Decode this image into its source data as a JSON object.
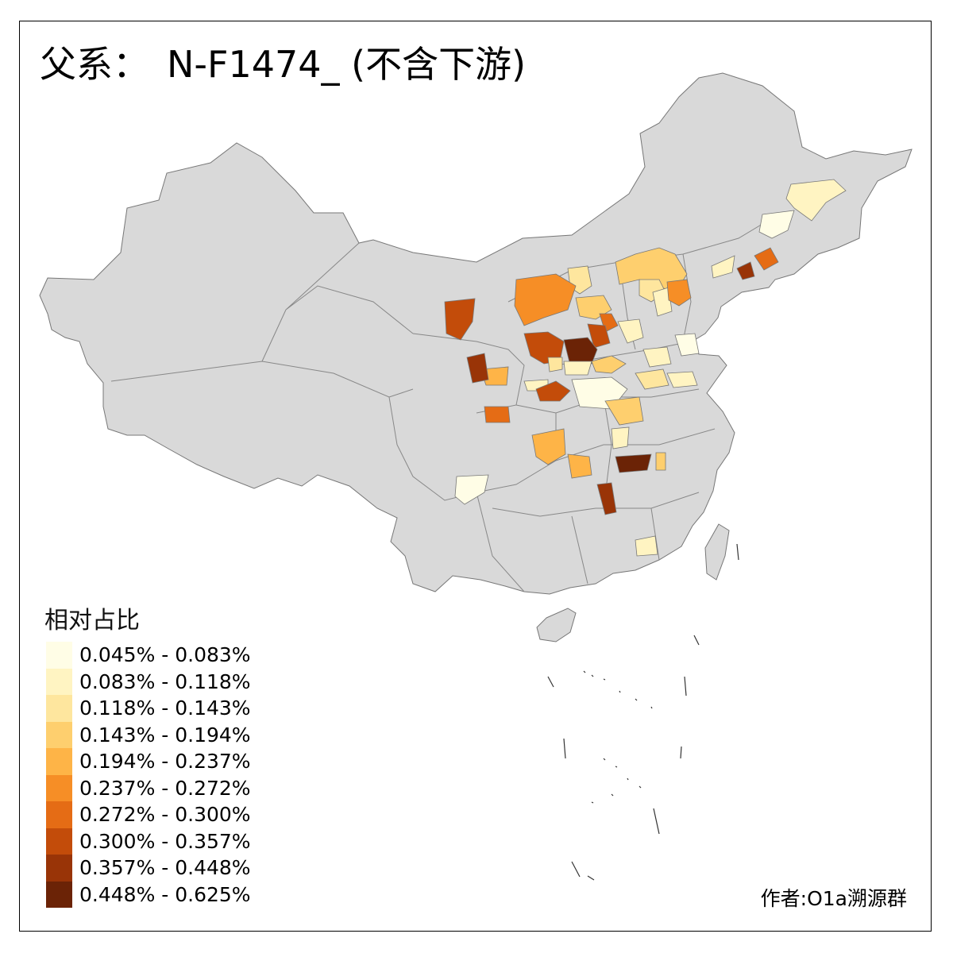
{
  "title": {
    "prefix": "父系：",
    "haplogroup": "N-F1474_ (不含下游)"
  },
  "legend": {
    "title": "相对占比",
    "bins": [
      {
        "label": "0.045% - 0.083%",
        "color": "#fffde6"
      },
      {
        "label": "0.083% - 0.118%",
        "color": "#fff4c2"
      },
      {
        "label": "0.118% - 0.143%",
        "color": "#fee69e"
      },
      {
        "label": "0.143% - 0.194%",
        "color": "#fecf6e"
      },
      {
        "label": "0.194% - 0.237%",
        "color": "#feb447"
      },
      {
        "label": "0.237% - 0.272%",
        "color": "#f68e26"
      },
      {
        "label": "0.272% - 0.300%",
        "color": "#e56c15"
      },
      {
        "label": "0.300% - 0.357%",
        "color": "#c34c0a"
      },
      {
        "label": "0.357% - 0.448%",
        "color": "#993407"
      },
      {
        "label": "0.448% - 0.625%",
        "color": "#6b2306"
      }
    ]
  },
  "map": {
    "base_fill": "#d9d9d9",
    "border_color": "#888888",
    "regions": [
      {
        "bin": 1
      },
      {
        "bin": 0
      },
      {
        "bin": 1
      },
      {
        "bin": 8
      },
      {
        "bin": 6
      },
      {
        "bin": 3
      },
      {
        "bin": 2
      },
      {
        "bin": 1
      },
      {
        "bin": 5
      },
      {
        "bin": 2
      },
      {
        "bin": 5
      },
      {
        "bin": 3
      },
      {
        "bin": 6
      },
      {
        "bin": 7
      },
      {
        "bin": 1
      },
      {
        "bin": 7
      },
      {
        "bin": 9
      },
      {
        "bin": 1
      },
      {
        "bin": 3
      },
      {
        "bin": 7
      },
      {
        "bin": 4
      },
      {
        "bin": 1
      },
      {
        "bin": 8
      },
      {
        "bin": 0
      },
      {
        "bin": 3
      },
      {
        "bin": 2
      },
      {
        "bin": 1
      },
      {
        "bin": 0
      },
      {
        "bin": 1
      },
      {
        "bin": 6
      },
      {
        "bin": 7
      },
      {
        "bin": 4
      },
      {
        "bin": 1
      },
      {
        "bin": 4
      },
      {
        "bin": 9
      },
      {
        "bin": 3
      },
      {
        "bin": 8
      },
      {
        "bin": 0
      },
      {
        "bin": 1
      },
      {
        "bin": 2
      }
    ]
  },
  "credit": "作者:O1a溯源群"
}
